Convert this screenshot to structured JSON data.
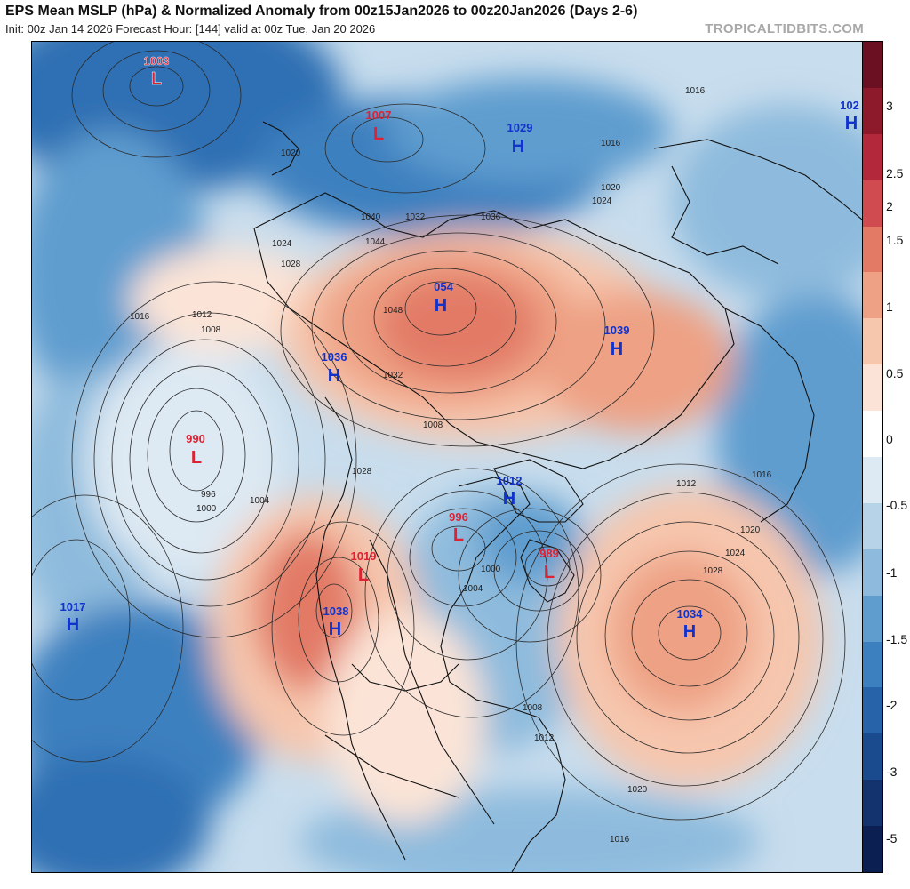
{
  "header": {
    "title": "EPS Mean MSLP (hPa) & Normalized Anomaly from 00z15Jan2026 to 00z20Jan2026 (Days 2-6)",
    "subtitle": "Init: 00z Jan 14 2026   Forecast Hour: [144]   valid at 00z Tue, Jan 20 2026",
    "source": "TROPICALTIDBITS.COM"
  },
  "colors": {
    "high_label": "#1133cc",
    "low_label": "#dd2233",
    "contour": "#2a2a2a",
    "land_outline": "#111111"
  },
  "colorbar": {
    "ticks": [
      "3",
      "2.5",
      "2",
      "1.5",
      "1",
      "0.5",
      "0",
      "-0.5",
      "-1",
      "-1.5",
      "-2",
      "-3",
      "-5"
    ],
    "colors": [
      "#6b0f22",
      "#8c1a2b",
      "#b3283a",
      "#cf4b4f",
      "#e27a66",
      "#eea184",
      "#f6c6ad",
      "#fbe4d7",
      "#ffffff",
      "#dde9f3",
      "#b6d3e8",
      "#8ebbdd",
      "#5f9dcf",
      "#3d80bf",
      "#2763a8",
      "#1a4b8e",
      "#12336e",
      "#0c1f52"
    ]
  },
  "pressure_centers": [
    {
      "type": "L",
      "value": "1003"
    },
    {
      "type": "L",
      "value": "1007"
    },
    {
      "type": "H",
      "value": "1029"
    },
    {
      "type": "H",
      "value": "102"
    },
    {
      "type": "H",
      "value": "054"
    },
    {
      "type": "H",
      "value": "1039"
    },
    {
      "type": "H",
      "value": "1036"
    },
    {
      "type": "L",
      "value": "990"
    },
    {
      "type": "H",
      "value": "1012"
    },
    {
      "type": "L",
      "value": "996"
    },
    {
      "type": "L",
      "value": "989"
    },
    {
      "type": "L",
      "value": "1019"
    },
    {
      "type": "H",
      "value": "1038"
    },
    {
      "type": "H",
      "value": "1017"
    },
    {
      "type": "H",
      "value": "1034"
    }
  ],
  "isobar_labels": [
    "1012",
    "1016",
    "1016",
    "1020",
    "1024",
    "1028",
    "1032",
    "1036",
    "1040",
    "1044",
    "1048",
    "1008",
    "996",
    "1000",
    "1004",
    "1008",
    "1012",
    "1016",
    "1020",
    "1024",
    "1028",
    "1032",
    "1028",
    "1024",
    "1020",
    "1016",
    "1012",
    "1008",
    "1004",
    "1000",
    "1020",
    "1016",
    "1012"
  ]
}
